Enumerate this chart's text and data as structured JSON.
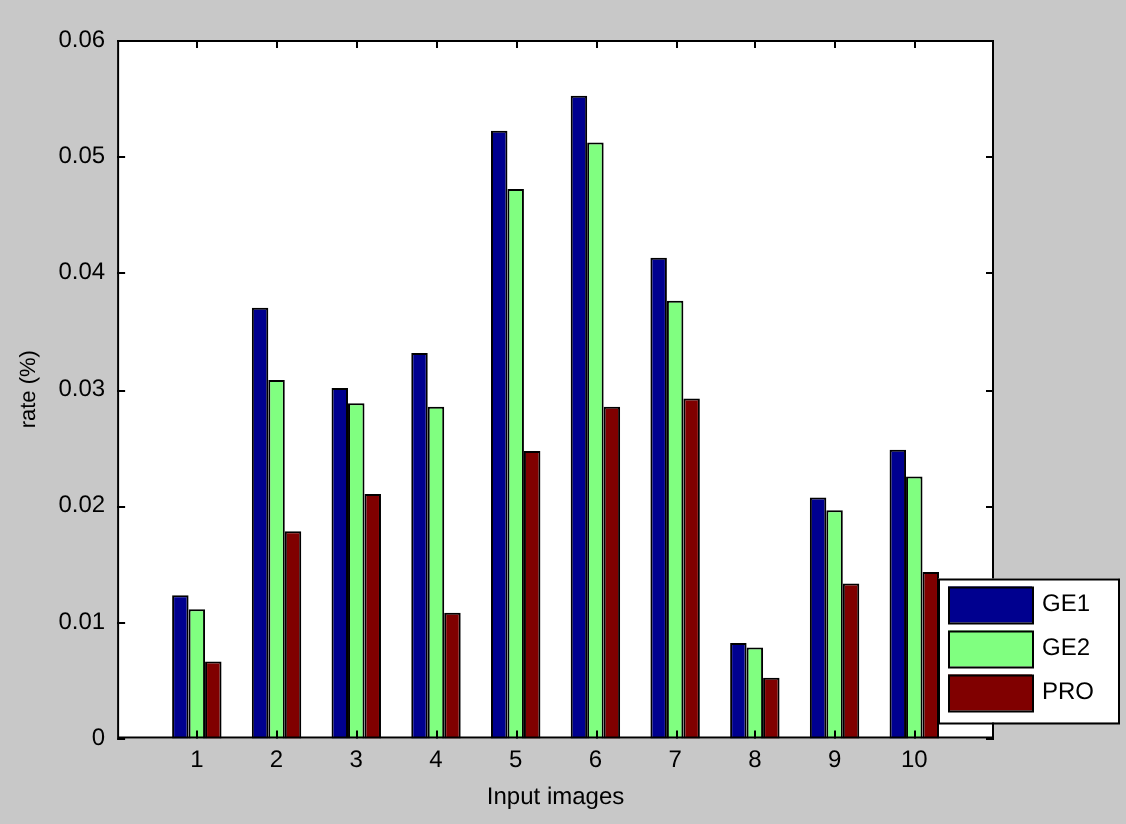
{
  "chart_data": {
    "type": "bar",
    "xlabel": "Input images",
    "ylabel": "rate (%)",
    "categories": [
      "1",
      "2",
      "3",
      "4",
      "5",
      "6",
      "7",
      "8",
      "9",
      "10"
    ],
    "series": [
      {
        "name": "GE1",
        "color": "#00008f",
        "values": [
          0.0123,
          0.037,
          0.0301,
          0.0331,
          0.0522,
          0.0552,
          0.0413,
          0.0082,
          0.0207,
          0.0248
        ]
      },
      {
        "name": "GE2",
        "color": "#80ff80",
        "values": [
          0.0111,
          0.0308,
          0.0288,
          0.0285,
          0.0472,
          0.0512,
          0.0376,
          0.0078,
          0.0196,
          0.0225
        ]
      },
      {
        "name": "PRO",
        "color": "#800000",
        "values": [
          0.0066,
          0.0178,
          0.021,
          0.0108,
          0.0247,
          0.0285,
          0.0292,
          0.0052,
          0.0133,
          0.0143
        ]
      }
    ],
    "ylim": [
      0,
      0.06
    ],
    "yticks": [
      0,
      0.01,
      0.02,
      0.03,
      0.04,
      0.05,
      0.06
    ],
    "grid": false,
    "legend": "bottom right"
  }
}
